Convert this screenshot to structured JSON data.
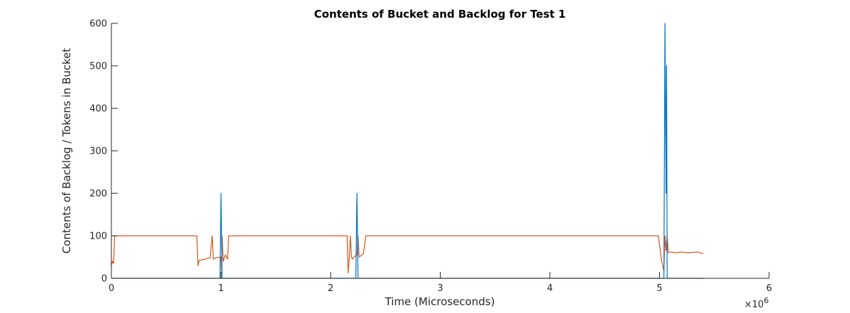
{
  "chart_data": {
    "type": "line",
    "title": "Contents of Bucket and Backlog for Test 1",
    "xlabel": "Time (Microseconds)",
    "ylabel": "Contents of Backlog / Tokens in Bucket",
    "x_exponent_label": "×10",
    "x_exponent_power": "6",
    "xlim": [
      0,
      6
    ],
    "ylim": [
      0,
      600
    ],
    "x_ticks": [
      0,
      1,
      2,
      3,
      4,
      5,
      6
    ],
    "x_tick_labels": [
      "0",
      "1",
      "2",
      "3",
      "4",
      "5",
      "6"
    ],
    "y_ticks": [
      0,
      100,
      200,
      300,
      400,
      500,
      600
    ],
    "y_tick_labels": [
      "0",
      "100",
      "200",
      "300",
      "400",
      "500",
      "600"
    ],
    "grid": false,
    "series": [
      {
        "color": "#0072BD",
        "x": [
          0,
          0.99,
          1.0,
          1.01,
          1.02,
          2.23,
          2.24,
          2.25,
          2.26,
          5.04,
          5.05,
          5.06,
          5.065,
          5.07,
          5.09,
          5.4
        ],
        "y": [
          0,
          0,
          200,
          0,
          0,
          0,
          200,
          0,
          0,
          0,
          600,
          200,
          500,
          0,
          0,
          0
        ]
      },
      {
        "color": "#D95319",
        "x": [
          0,
          0.01,
          0.02,
          0.03,
          0.04,
          0.05,
          0.78,
          0.79,
          0.8,
          0.85,
          0.9,
          0.92,
          0.93,
          0.95,
          1.0,
          1.005,
          1.01,
          1.02,
          1.04,
          1.06,
          1.07,
          2.15,
          2.16,
          2.17,
          2.18,
          2.19,
          2.2,
          2.22,
          2.24,
          2.25,
          2.26,
          2.3,
          2.32,
          4.99,
          5.0,
          5.02,
          5.04,
          5.05,
          5.06,
          5.07,
          5.08,
          5.1,
          5.15,
          5.2,
          5.25,
          5.3,
          5.35,
          5.4
        ],
        "y": [
          30,
          40,
          35,
          100,
          100,
          100,
          100,
          30,
          42,
          45,
          48,
          100,
          45,
          48,
          50,
          12,
          100,
          40,
          55,
          45,
          100,
          100,
          12,
          48,
          100,
          50,
          45,
          52,
          55,
          100,
          50,
          58,
          100,
          100,
          80,
          40,
          18,
          100,
          65,
          100,
          60,
          62,
          60,
          62,
          60,
          61,
          62,
          58
        ]
      }
    ]
  }
}
